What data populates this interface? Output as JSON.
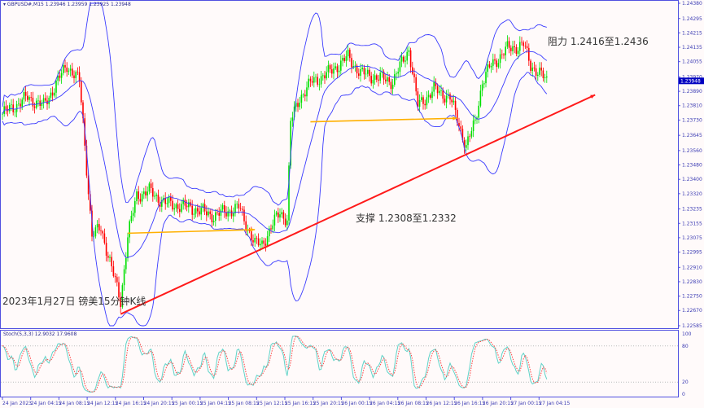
{
  "header": {
    "symbol": "GBPUSD#,M15",
    "ohlc": "1.23946 1.23959 1.23925 1.23948"
  },
  "stoch_header": "Stoch(5,3,3) 12.9032 17.9608",
  "annotations": {
    "resistance": "阻力 1.2416至1.2436",
    "support": "支撑 1.2308至1.2332",
    "title": "2023年1月27日 镑美15分钟K线"
  },
  "colors": {
    "up": "#00e000",
    "down": "#ff0000",
    "bands": "#3a3aff",
    "trend": "#ff1a1a",
    "arrow": "#ffb000",
    "stoch_main": "#5fd3c8",
    "stoch_signal": "#ff4040"
  },
  "chart_data": {
    "type": "candlestick",
    "timeframe": "M15",
    "indicators": [
      "Bollinger Bands",
      "Stochastic(5,3,3)"
    ],
    "ylim": [
      1.22585,
      1.2438
    ],
    "y_ticks": [
      "1.24380",
      "1.24295",
      "1.24215",
      "1.24135",
      "1.24055",
      "1.23970",
      "1.23890",
      "1.23810",
      "1.23730",
      "1.23645",
      "1.23560",
      "1.23480",
      "1.23400",
      "1.23320",
      "1.23235",
      "1.23155",
      "1.23075",
      "1.22995",
      "1.22910",
      "1.22830",
      "1.22750",
      "1.22670",
      "1.22585"
    ],
    "current_price": "1.23948",
    "stoch_ticks": [
      "100",
      "80",
      "20",
      "0"
    ],
    "x_ticks": [
      "24 Jan 2023",
      "24 Jan 04:15",
      "24 Jan 08:15",
      "24 Jan 12:15",
      "24 Jan 16:15",
      "24 Jan 20:15",
      "25 Jan 00:15",
      "25 Jan 04:15",
      "25 Jan 08:15",
      "25 Jan 12:15",
      "25 Jan 16:15",
      "25 Jan 20:15",
      "26 Jan 00:15",
      "26 Jan 04:15",
      "26 Jan 08:15",
      "26 Jan 12:15",
      "26 Jan 16:15",
      "26 Jan 20:15",
      "27 Jan 00:15",
      "27 Jan 04:15"
    ],
    "close_path": [
      [
        0,
        1.23764
      ],
      [
        14,
        1.23855
      ],
      [
        23,
        1.23809
      ],
      [
        36,
        1.24036
      ],
      [
        43,
        1.23945
      ],
      [
        45,
        1.23719
      ],
      [
        50,
        1.23084
      ],
      [
        55,
        1.2313
      ],
      [
        61,
        1.22903
      ],
      [
        66,
        1.22722
      ],
      [
        70,
        1.23084
      ],
      [
        75,
        1.23311
      ],
      [
        82,
        1.23334
      ],
      [
        91,
        1.23266
      ],
      [
        105,
        1.23243
      ],
      [
        118,
        1.23198
      ],
      [
        132,
        1.23243
      ],
      [
        141,
        1.23039
      ],
      [
        145,
        1.23039
      ],
      [
        155,
        1.2322
      ],
      [
        159,
        1.23175
      ],
      [
        161,
        1.23719
      ],
      [
        166,
        1.23855
      ],
      [
        173,
        1.23945
      ],
      [
        182,
        1.2399
      ],
      [
        193,
        1.24081
      ],
      [
        200,
        1.2399
      ],
      [
        209,
        1.23968
      ],
      [
        218,
        1.23945
      ],
      [
        227,
        1.24126
      ],
      [
        232,
        1.23809
      ],
      [
        241,
        1.239
      ],
      [
        250,
        1.23855
      ],
      [
        259,
        1.23583
      ],
      [
        264,
        1.23719
      ],
      [
        268,
        1.23945
      ],
      [
        273,
        1.24036
      ],
      [
        282,
        1.24126
      ],
      [
        291,
        1.24149
      ],
      [
        295,
        1.24036
      ],
      [
        300,
        1.2399
      ],
      [
        304,
        1.23945
      ]
    ],
    "trendline": {
      "from": [
        66,
        1.2265
      ],
      "to": [
        331,
        1.2387
      ]
    },
    "support_arrow": {
      "from": [
        70,
        1.231
      ],
      "to": [
        141,
        1.2312
      ]
    },
    "resist_arrow": {
      "from": [
        172,
        1.2372
      ],
      "to": [
        254,
        1.2374
      ]
    }
  }
}
